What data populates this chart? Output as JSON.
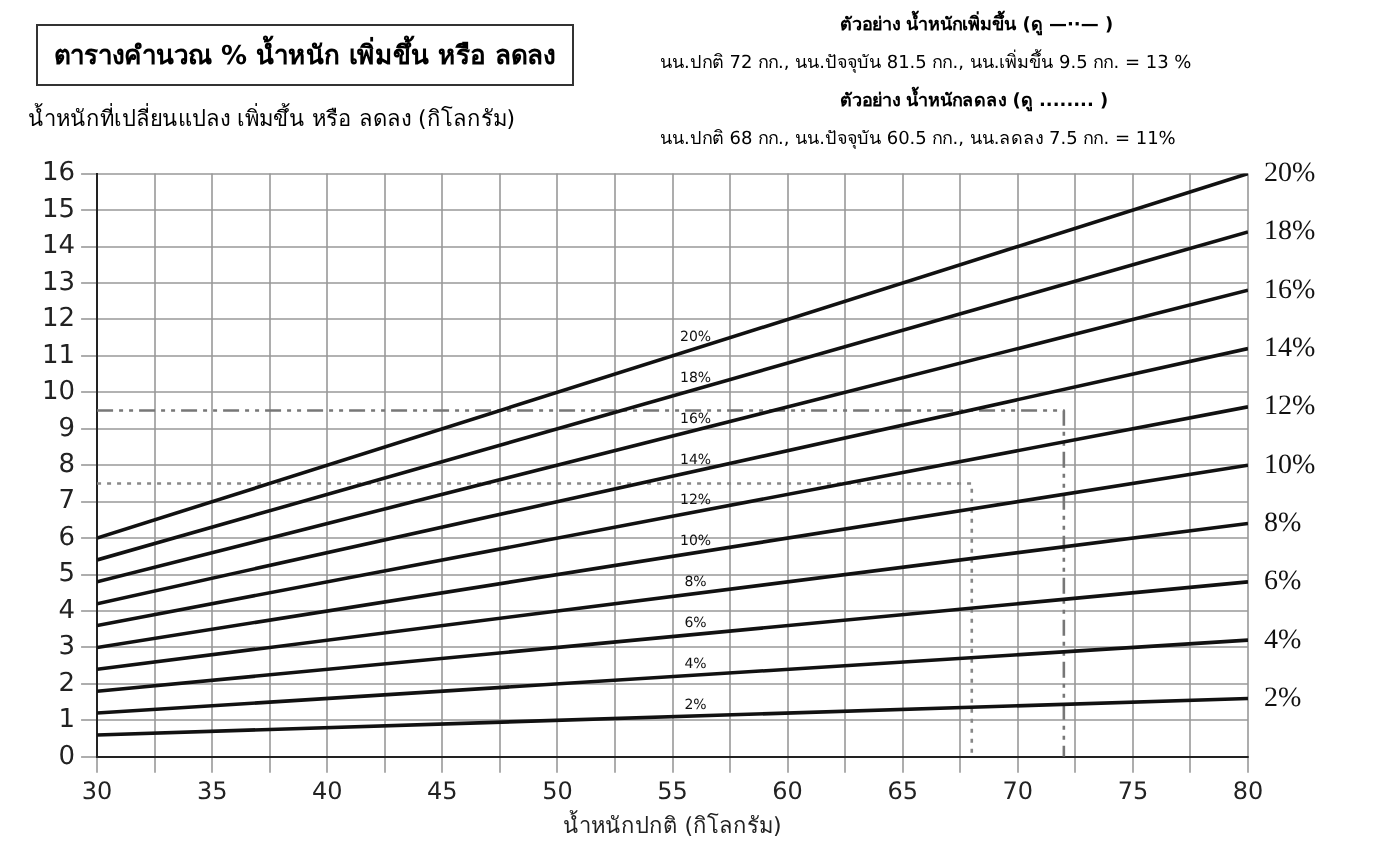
{
  "chart_data": {
    "type": "line",
    "title": "ตารางคำนวณ % น้ำหนัก เพิ่มขึ้น หรือ ลดลง",
    "ylabel": "น้ำหนักที่เปลี่ยนแปลง เพิ่มขึ้น หรือ ลดลง (กิโลกรัม)",
    "xlabel": "น้ำหนักปกติ (กิโลกรัม)",
    "annotations": [
      "ตัวอย่าง น้ำหนักเพิ่มขึ้น (ดู —··— )",
      "นน.ปกติ 72 กก., นน.ปัจจุบัน 81.5 กก., นน.เพิ่มขึ้น 9.5 กก. = 13 %",
      "ตัวอย่าง น้ำหนักลดลง (ดู ........ )",
      "นน.ปกติ 68 กก., นน.ปัจจุบัน 60.5 กก., นน.ลดลง 7.5 กก. = 11%"
    ],
    "x": [
      30,
      80
    ],
    "series": [
      {
        "name": "20%",
        "color": "#111111",
        "values": [
          6,
          16
        ]
      },
      {
        "name": "18%",
        "color": "#111111",
        "values": [
          5.4,
          14.4
        ]
      },
      {
        "name": "16%",
        "color": "#111111",
        "values": [
          4.8,
          12.8
        ]
      },
      {
        "name": "14%",
        "color": "#111111",
        "values": [
          4.2,
          11.2
        ]
      },
      {
        "name": "12%",
        "color": "#111111",
        "values": [
          3.6,
          9.6
        ]
      },
      {
        "name": "10%",
        "color": "#111111",
        "values": [
          3,
          8
        ]
      },
      {
        "name": "8%",
        "color": "#111111",
        "values": [
          2.4,
          6.4
        ]
      },
      {
        "name": "6%",
        "color": "#111111",
        "values": [
          1.8,
          4.8
        ]
      },
      {
        "name": "4%",
        "color": "#111111",
        "values": [
          1.2,
          3.2
        ]
      },
      {
        "name": "2%",
        "color": "#111111",
        "values": [
          0.6,
          1.6
        ]
      },
      {
        "type": "line",
        "color": "#777777",
        "line_style": "dashed",
        "x": [
          30,
          72,
          72
        ],
        "values": [
          9.5,
          9.5,
          0
        ]
      },
      {
        "type": "line",
        "color": "#888888",
        "line_style": "dotted",
        "x": [
          30,
          68,
          68
        ],
        "values": [
          7.5,
          7.5,
          0
        ]
      }
    ],
    "xlim": [
      30,
      80
    ],
    "xticks": [
      30,
      {
        "value": 32.5,
        "label": null
      },
      35,
      {
        "value": 37.5,
        "label": null
      },
      40,
      {
        "value": 42.5,
        "label": null
      },
      45,
      {
        "value": 47.5,
        "label": null
      },
      50,
      {
        "value": 52.5,
        "label": null
      },
      55,
      {
        "value": 57.5,
        "label": null
      },
      60,
      {
        "value": 62.5,
        "label": null
      },
      65,
      {
        "value": 67.5,
        "label": null
      },
      70,
      {
        "value": 72.5,
        "label": null
      },
      75,
      {
        "value": 77.5,
        "label": null
      },
      80
    ],
    "ylim": [
      0,
      16
    ],
    "yticks": [
      0,
      1,
      2,
      3,
      4,
      5,
      6,
      7,
      8,
      9,
      10,
      11,
      12,
      13,
      14,
      15,
      16
    ],
    "grid": true,
    "legend": false,
    "marker": "none",
    "line_style": "solid"
  }
}
